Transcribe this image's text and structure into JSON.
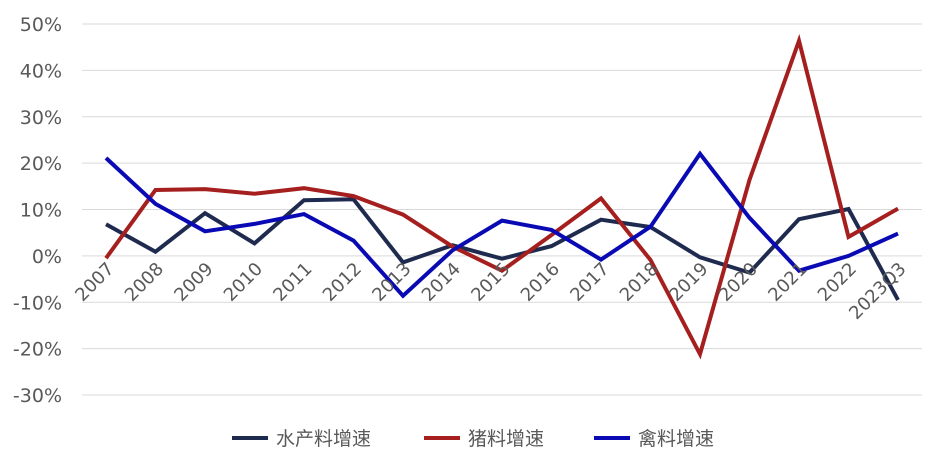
{
  "chart_data": {
    "type": "line",
    "categories": [
      "2007",
      "2008",
      "2009",
      "2010",
      "2011",
      "2012",
      "2013",
      "2014",
      "2015",
      "2016",
      "2017",
      "2018",
      "2019",
      "2020",
      "2021",
      "2022",
      "2023Q3"
    ],
    "series": [
      {
        "name": "水产料增速",
        "color": "#1f2a4f",
        "values": [
          6.8,
          0.9,
          9.2,
          2.7,
          12.0,
          12.2,
          -1.4,
          2.3,
          -0.6,
          2.1,
          7.8,
          6.2,
          -0.3,
          -3.6,
          7.9,
          10.1,
          -9.5
        ]
      },
      {
        "name": "猪料增速",
        "color": "#a61f1f",
        "values": [
          -0.5,
          14.2,
          14.4,
          13.4,
          14.6,
          12.9,
          8.9,
          2.0,
          -3.2,
          4.5,
          12.4,
          -0.9,
          -21.2,
          16.4,
          46.4,
          4.1,
          10.2
        ]
      },
      {
        "name": "禽料增速",
        "color": "#0a0ab4",
        "values": [
          21.1,
          11.2,
          5.3,
          6.9,
          9.0,
          3.3,
          -8.6,
          1.2,
          7.6,
          5.6,
          -0.8,
          6.3,
          22.0,
          8.2,
          -3.2,
          0.0,
          4.8
        ]
      }
    ],
    "y_ticks": [
      "50%",
      "40%",
      "30%",
      "20%",
      "10%",
      "0%",
      "-10%",
      "-20%",
      "-30%"
    ],
    "ylim": [
      -30,
      50
    ],
    "grid": true,
    "legend_position": "bottom"
  }
}
